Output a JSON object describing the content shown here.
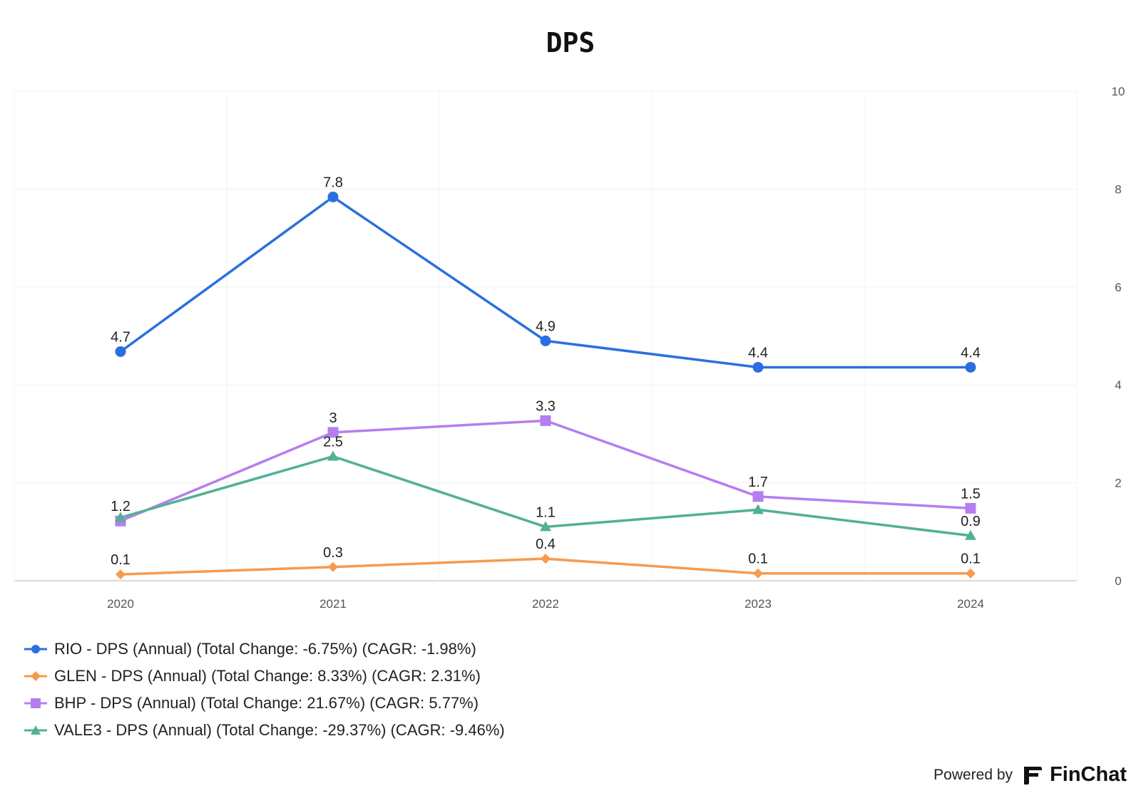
{
  "chart_data": {
    "type": "line",
    "title": "DPS",
    "categories": [
      "2020",
      "2021",
      "2022",
      "2023",
      "2024"
    ],
    "yticks": [
      "0",
      "2",
      "4",
      "6",
      "8",
      "10"
    ],
    "ylim": [
      0,
      10
    ],
    "yaxis_position": "right",
    "grid": true,
    "legend_position": "bottom-left",
    "series": [
      {
        "name": "RIO - DPS (Annual) (Total Change: -6.75%) (CAGR: -1.98%)",
        "values": [
          4.68,
          7.84,
          4.9,
          4.36,
          4.36
        ],
        "labels": [
          "4.7",
          "7.8",
          "4.9",
          "4.4",
          "4.4"
        ],
        "color": "#2a6fe0",
        "marker": "circle"
      },
      {
        "name": "GLEN - DPS (Annual) (Total Change: 8.33%) (CAGR: 2.31%)",
        "values": [
          0.13,
          0.28,
          0.45,
          0.15,
          0.15
        ],
        "labels": [
          "0.1",
          "0.3",
          "0.4",
          "0.1",
          "0.1"
        ],
        "color": "#f79a4e",
        "marker": "diamond"
      },
      {
        "name": "BHP - DPS (Annual) (Total Change: 21.67%) (CAGR: 5.77%)",
        "values": [
          1.22,
          3.03,
          3.27,
          1.72,
          1.48
        ],
        "labels": [
          "1.2",
          "3",
          "3.3",
          "1.7",
          "1.5"
        ],
        "color": "#b57ef0",
        "marker": "square"
      },
      {
        "name": "VALE3 - DPS (Annual) (Total Change: -29.37%) (CAGR: -9.46%)",
        "values": [
          1.29,
          2.54,
          1.1,
          1.45,
          0.92
        ],
        "labels": [
          "",
          "2.5",
          "1.1",
          "",
          "0.9"
        ],
        "color": "#52b094",
        "marker": "triangle"
      }
    ]
  },
  "footer": {
    "powered_by": "Powered by",
    "brand": "FinChat"
  }
}
